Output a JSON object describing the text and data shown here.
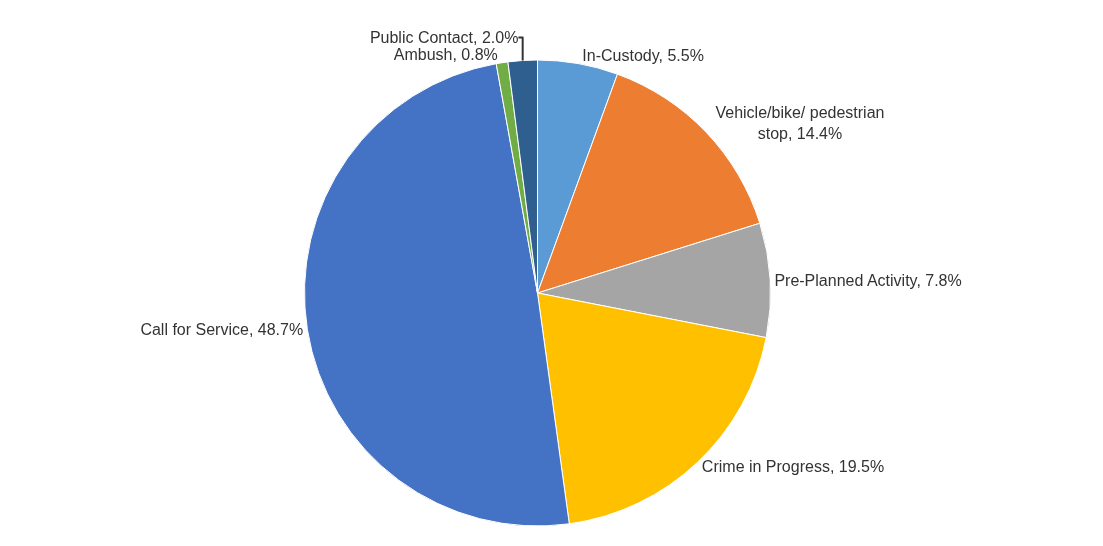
{
  "chart_data": {
    "type": "pie",
    "categories": [
      "In-Custody",
      "Vehicle/bike/ pedestrian stop",
      "Pre-Planned Activity",
      "Crime in Progress",
      "Call for Service",
      "Ambush",
      "Public Contact"
    ],
    "values": [
      5.5,
      14.4,
      7.8,
      19.5,
      48.7,
      0.8,
      2.0
    ],
    "value_labels": [
      "5.5%",
      "14.4%",
      "7.8%",
      "19.5%",
      "48.7%",
      "0.8%",
      "2.0%"
    ],
    "colors": [
      "#5b9bd5",
      "#ed7d31",
      "#a5a5a5",
      "#ffc000",
      "#4472c4",
      "#70ad47",
      "#2f5f8f"
    ],
    "legend": false
  }
}
